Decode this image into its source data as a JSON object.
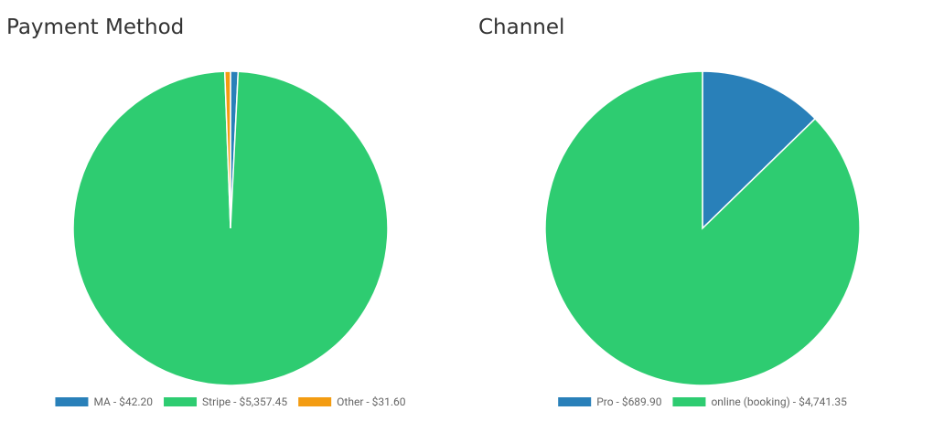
{
  "chart_data": [
    {
      "type": "pie",
      "title": "Payment Method",
      "categories": [
        "MA - $42.20",
        "Stripe - $5,357.45",
        "Other - $31.60"
      ],
      "values": [
        42.2,
        5357.45,
        31.6
      ],
      "colors": [
        "#2980b9",
        "#2ecc71",
        "#f39c12"
      ]
    },
    {
      "type": "pie",
      "title": "Channel",
      "categories": [
        "Pro - $689.90",
        "online (booking) - $4,741.35"
      ],
      "values": [
        689.9,
        4741.35
      ],
      "colors": [
        "#2980b9",
        "#2ecc71"
      ]
    }
  ]
}
